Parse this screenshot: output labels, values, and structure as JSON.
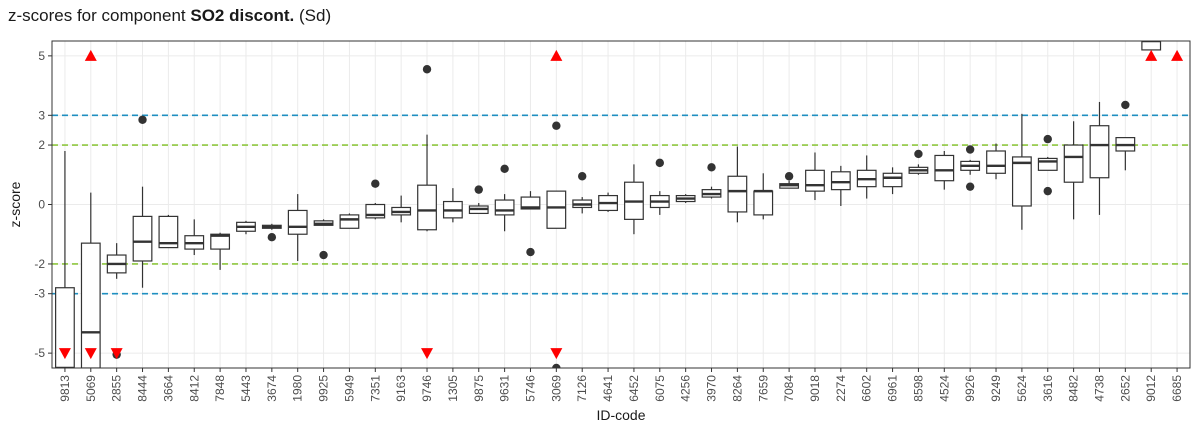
{
  "title": {
    "prefix": "z-scores for component ",
    "component": "SO2 discont.",
    "suffix": " (Sd)"
  },
  "chart_data": {
    "type": "boxplot",
    "xlabel": "ID-code",
    "ylabel": "z-score",
    "ylim": [
      -5.5,
      5.5
    ],
    "yticks": [
      5,
      3,
      2,
      0,
      -2,
      -3,
      -5
    ],
    "reference_lines": [
      {
        "y": 3,
        "color": "#1f8fc0"
      },
      {
        "y": -3,
        "color": "#1f8fc0"
      },
      {
        "y": 2,
        "color": "#8dc63f"
      },
      {
        "y": -2,
        "color": "#8dc63f"
      }
    ],
    "colors": {
      "box": "#333333",
      "offscale_marker": "#ff0000"
    },
    "labs": [
      {
        "id": "9813",
        "lw": -5.5,
        "q1": -5.5,
        "med": -5.5,
        "q3": -2.8,
        "up": 1.8,
        "out": [],
        "hi": false,
        "lo": true
      },
      {
        "id": "5069",
        "lw": -5.5,
        "q1": -5.5,
        "med": -4.3,
        "q3": -1.3,
        "up": 0.4,
        "out": [],
        "hi": true,
        "lo": true
      },
      {
        "id": "2855",
        "lw": -2.5,
        "q1": -2.3,
        "med": -2.0,
        "q3": -1.7,
        "up": -1.3,
        "out": [
          -5.05
        ],
        "hi": false,
        "lo": true
      },
      {
        "id": "8444",
        "lw": -2.8,
        "q1": -1.9,
        "med": -1.25,
        "q3": -0.4,
        "up": 0.6,
        "out": [
          2.85
        ],
        "hi": false,
        "lo": false
      },
      {
        "id": "3664",
        "lw": -1.45,
        "q1": -1.45,
        "med": -1.3,
        "q3": -0.4,
        "up": -0.35,
        "out": [],
        "hi": false,
        "lo": false
      },
      {
        "id": "8412",
        "lw": -1.7,
        "q1": -1.5,
        "med": -1.3,
        "q3": -1.05,
        "up": -0.5,
        "out": [],
        "hi": false,
        "lo": false
      },
      {
        "id": "7848",
        "lw": -2.2,
        "q1": -1.5,
        "med": -1.05,
        "q3": -1.0,
        "up": -0.95,
        "out": [],
        "hi": false,
        "lo": false
      },
      {
        "id": "5443",
        "lw": -1.0,
        "q1": -0.9,
        "med": -0.75,
        "q3": -0.6,
        "up": -0.55,
        "out": [],
        "hi": false,
        "lo": false
      },
      {
        "id": "3674",
        "lw": -0.85,
        "q1": -0.8,
        "med": -0.75,
        "q3": -0.7,
        "up": -0.65,
        "out": [
          -1.1
        ],
        "hi": false,
        "lo": false
      },
      {
        "id": "1980",
        "lw": -1.9,
        "q1": -1.0,
        "med": -0.75,
        "q3": -0.2,
        "up": 0.35,
        "out": [],
        "hi": false,
        "lo": false
      },
      {
        "id": "9925",
        "lw": -0.7,
        "q1": -0.7,
        "med": -0.65,
        "q3": -0.55,
        "up": -0.5,
        "out": [
          -1.7
        ],
        "hi": false,
        "lo": false
      },
      {
        "id": "5949",
        "lw": -0.8,
        "q1": -0.8,
        "med": -0.5,
        "q3": -0.35,
        "up": -0.3,
        "out": [],
        "hi": false,
        "lo": false
      },
      {
        "id": "7351",
        "lw": -0.5,
        "q1": -0.45,
        "med": -0.35,
        "q3": 0.0,
        "up": 0.05,
        "out": [
          0.7
        ],
        "hi": false,
        "lo": false
      },
      {
        "id": "9163",
        "lw": -0.6,
        "q1": -0.35,
        "med": -0.25,
        "q3": -0.1,
        "up": 0.3,
        "out": [],
        "hi": false,
        "lo": false
      },
      {
        "id": "9746",
        "lw": -0.9,
        "q1": -0.85,
        "med": -0.2,
        "q3": 0.65,
        "up": 2.35,
        "out": [
          4.55
        ],
        "hi": false,
        "lo": true
      },
      {
        "id": "1305",
        "lw": -0.6,
        "q1": -0.45,
        "med": -0.2,
        "q3": 0.1,
        "up": 0.55,
        "out": [],
        "hi": false,
        "lo": false
      },
      {
        "id": "9875",
        "lw": -0.3,
        "q1": -0.3,
        "med": -0.15,
        "q3": -0.05,
        "up": 0.05,
        "out": [
          0.5
        ],
        "hi": false,
        "lo": false
      },
      {
        "id": "9631",
        "lw": -0.9,
        "q1": -0.35,
        "med": -0.2,
        "q3": 0.15,
        "up": 0.35,
        "out": [
          1.2
        ],
        "hi": false,
        "lo": false
      },
      {
        "id": "5746",
        "lw": -0.15,
        "q1": -0.15,
        "med": -0.1,
        "q3": 0.25,
        "up": 0.45,
        "out": [
          -1.6
        ],
        "hi": false,
        "lo": false
      },
      {
        "id": "3069",
        "lw": -0.8,
        "q1": -0.8,
        "med": -0.1,
        "q3": 0.45,
        "up": 0.45,
        "out": [
          2.65,
          -5.5
        ],
        "hi": true,
        "lo": true
      },
      {
        "id": "7126",
        "lw": -0.3,
        "q1": -0.1,
        "med": 0.0,
        "q3": 0.15,
        "up": 0.25,
        "out": [
          0.95
        ],
        "hi": false,
        "lo": false
      },
      {
        "id": "4641",
        "lw": -0.25,
        "q1": -0.2,
        "med": 0.05,
        "q3": 0.3,
        "up": 0.4,
        "out": [],
        "hi": false,
        "lo": false
      },
      {
        "id": "6452",
        "lw": -1.0,
        "q1": -0.5,
        "med": 0.1,
        "q3": 0.75,
        "up": 1.35,
        "out": [],
        "hi": false,
        "lo": false
      },
      {
        "id": "6075",
        "lw": -0.35,
        "q1": -0.1,
        "med": 0.1,
        "q3": 0.3,
        "up": 0.45,
        "out": [
          1.4
        ],
        "hi": false,
        "lo": false
      },
      {
        "id": "4256",
        "lw": 0.05,
        "q1": 0.1,
        "med": 0.2,
        "q3": 0.3,
        "up": 0.35,
        "out": [],
        "hi": false,
        "lo": false
      },
      {
        "id": "3970",
        "lw": 0.2,
        "q1": 0.25,
        "med": 0.35,
        "q3": 0.5,
        "up": 0.6,
        "out": [
          1.25
        ],
        "hi": false,
        "lo": false
      },
      {
        "id": "8264",
        "lw": -0.6,
        "q1": -0.25,
        "med": 0.45,
        "q3": 0.95,
        "up": 1.95,
        "out": [],
        "hi": false,
        "lo": false
      },
      {
        "id": "7659",
        "lw": -0.5,
        "q1": -0.35,
        "med": 0.45,
        "q3": 0.45,
        "up": 1.05,
        "out": [],
        "hi": false,
        "lo": false
      },
      {
        "id": "7084",
        "lw": 0.55,
        "q1": 0.55,
        "med": 0.65,
        "q3": 0.7,
        "up": 0.8,
        "out": [
          0.95
        ],
        "hi": false,
        "lo": false
      },
      {
        "id": "9018",
        "lw": 0.15,
        "q1": 0.45,
        "med": 0.65,
        "q3": 1.15,
        "up": 1.75,
        "out": [],
        "hi": false,
        "lo": false
      },
      {
        "id": "2274",
        "lw": -0.05,
        "q1": 0.5,
        "med": 0.75,
        "q3": 1.1,
        "up": 1.3,
        "out": [],
        "hi": false,
        "lo": false
      },
      {
        "id": "6602",
        "lw": 0.2,
        "q1": 0.6,
        "med": 0.85,
        "q3": 1.15,
        "up": 1.65,
        "out": [],
        "hi": false,
        "lo": false
      },
      {
        "id": "6961",
        "lw": 0.35,
        "q1": 0.6,
        "med": 0.9,
        "q3": 1.05,
        "up": 1.25,
        "out": [],
        "hi": false,
        "lo": false
      },
      {
        "id": "8598",
        "lw": 1.0,
        "q1": 1.05,
        "med": 1.15,
        "q3": 1.25,
        "up": 1.35,
        "out": [
          1.7
        ],
        "hi": false,
        "lo": false
      },
      {
        "id": "4524",
        "lw": 0.5,
        "q1": 0.8,
        "med": 1.15,
        "q3": 1.65,
        "up": 1.8,
        "out": [],
        "hi": false,
        "lo": false
      },
      {
        "id": "9926",
        "lw": 1.0,
        "q1": 1.15,
        "med": 1.3,
        "q3": 1.45,
        "up": 1.5,
        "out": [
          1.85,
          0.6
        ],
        "hi": false,
        "lo": false
      },
      {
        "id": "9249",
        "lw": 0.85,
        "q1": 1.05,
        "med": 1.3,
        "q3": 1.8,
        "up": 2.05,
        "out": [],
        "hi": false,
        "lo": false
      },
      {
        "id": "5624",
        "lw": -0.85,
        "q1": -0.05,
        "med": 1.4,
        "q3": 1.6,
        "up": 3.05,
        "out": [],
        "hi": false,
        "lo": false
      },
      {
        "id": "3616",
        "lw": 1.15,
        "q1": 1.15,
        "med": 1.45,
        "q3": 1.55,
        "up": 1.6,
        "out": [
          2.2,
          0.45
        ],
        "hi": false,
        "lo": false
      },
      {
        "id": "8482",
        "lw": -0.5,
        "q1": 0.75,
        "med": 1.6,
        "q3": 2.0,
        "up": 2.8,
        "out": [],
        "hi": false,
        "lo": false
      },
      {
        "id": "4738",
        "lw": -0.35,
        "q1": 0.9,
        "med": 2.0,
        "q3": 2.65,
        "up": 3.45,
        "out": [],
        "hi": false,
        "lo": false
      },
      {
        "id": "2652",
        "lw": 1.15,
        "q1": 1.8,
        "med": 2.0,
        "q3": 2.25,
        "up": 2.25,
        "out": [
          3.35
        ],
        "hi": false,
        "lo": false
      },
      {
        "id": "9012",
        "lw": 5.2,
        "q1": 5.2,
        "med": 5.5,
        "q3": 5.5,
        "up": 5.5,
        "out": [],
        "hi": true,
        "lo": false
      },
      {
        "id": "6685",
        "lw": null,
        "q1": null,
        "med": null,
        "q3": null,
        "up": null,
        "out": [],
        "hi": true,
        "lo": false
      }
    ]
  }
}
